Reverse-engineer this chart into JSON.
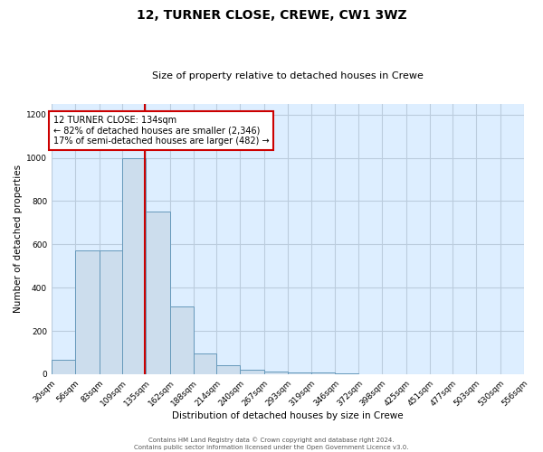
{
  "title": "12, TURNER CLOSE, CREWE, CW1 3WZ",
  "subtitle": "Size of property relative to detached houses in Crewe",
  "xlabel": "Distribution of detached houses by size in Crewe",
  "ylabel": "Number of detached properties",
  "bar_color": "#ccdded",
  "bar_edge_color": "#6699bb",
  "plot_bg_color": "#ddeeff",
  "fig_bg_color": "#ffffff",
  "grid_color": "#bbccdd",
  "bins": [
    30,
    56,
    83,
    109,
    135,
    162,
    188,
    214,
    240,
    267,
    293,
    319,
    346,
    372,
    398,
    425,
    451,
    477,
    503,
    530,
    556
  ],
  "counts": [
    65,
    570,
    570,
    1000,
    750,
    315,
    95,
    40,
    20,
    12,
    8,
    8,
    5,
    0,
    0,
    0,
    0,
    0,
    0,
    0
  ],
  "red_line_x": 134,
  "annotation_title": "12 TURNER CLOSE: 134sqm",
  "annotation_line1": "← 82% of detached houses are smaller (2,346)",
  "annotation_line2": "17% of semi-detached houses are larger (482) →",
  "annotation_box_color": "#ffffff",
  "annotation_border_color": "#cc0000",
  "red_line_color": "#cc0000",
  "footer1": "Contains HM Land Registry data © Crown copyright and database right 2024.",
  "footer2": "Contains public sector information licensed under the Open Government Licence v3.0.",
  "ylim": [
    0,
    1250
  ],
  "yticks": [
    0,
    200,
    400,
    600,
    800,
    1000,
    1200
  ],
  "title_fontsize": 10,
  "subtitle_fontsize": 8,
  "axis_label_fontsize": 7.5,
  "tick_fontsize": 6.5,
  "annotation_fontsize": 7,
  "footer_fontsize": 5
}
